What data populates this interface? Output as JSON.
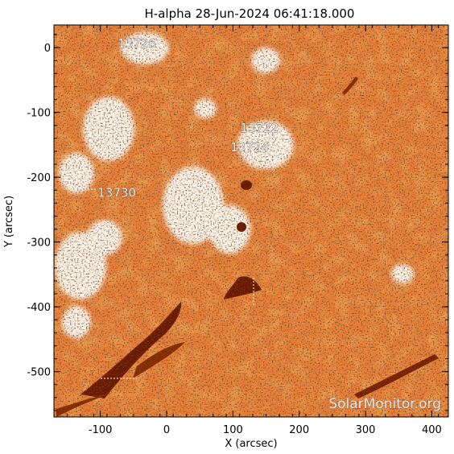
{
  "title": "H-alpha 28-Jun-2024 06:41:18.000",
  "x_axis": {
    "label": "X (arcsec)",
    "range": [
      -170,
      425
    ],
    "ticks": [
      -100,
      0,
      100,
      200,
      300,
      400
    ]
  },
  "y_axis": {
    "label": "Y (arcsec)",
    "range": [
      -570,
      35
    ],
    "ticks": [
      0,
      -100,
      -200,
      -300,
      -400,
      -500
    ]
  },
  "active_regions": [
    {
      "label": "13726",
      "x": -45,
      "y": 0
    },
    {
      "label": "13722",
      "x": 140,
      "y": -130
    },
    {
      "label": "13724",
      "x": 125,
      "y": -160
    },
    {
      "label": "13730",
      "x": -75,
      "y": -230
    }
  ],
  "watermark": "SolarMonitor.org",
  "colors": {
    "background": "#e8803a",
    "plage": "#fff4ea",
    "filament": "#6b1800",
    "axis": "#000000"
  }
}
